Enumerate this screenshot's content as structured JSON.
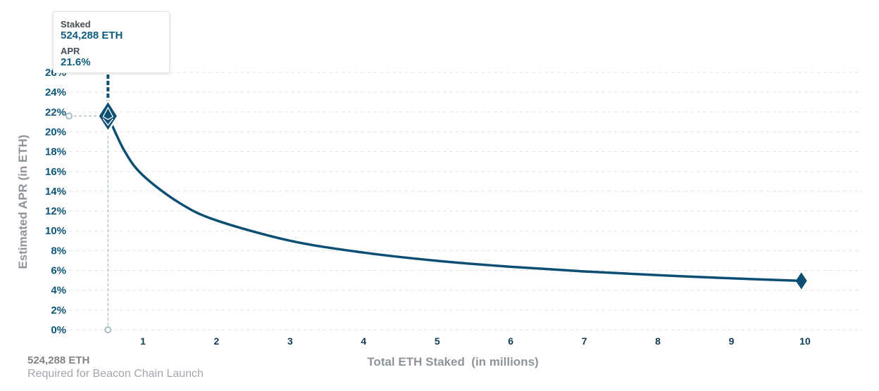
{
  "chart_data": {
    "type": "line",
    "xlabel": "Total ETH Staked  (in millions)",
    "ylabel": "Estimated APR (in ETH)",
    "xlim": [
      0,
      10.5
    ],
    "ylim": [
      0,
      26
    ],
    "x_ticks": [
      "1",
      "2",
      "3",
      "4",
      "5",
      "6",
      "7",
      "8",
      "9",
      "10"
    ],
    "y_ticks": [
      "0%",
      "2%",
      "4%",
      "6%",
      "8%",
      "10%",
      "12%",
      "14%",
      "16%",
      "18%",
      "20%",
      "22%",
      "24%",
      "26%"
    ],
    "grid": "horizontal dashed",
    "series": [
      {
        "x": [
          0.524288,
          0.75,
          1,
          1.5,
          2,
          3,
          4,
          5,
          6,
          7,
          8,
          9,
          9.95
        ],
        "y": [
          21.6,
          18.05,
          15.6,
          12.8,
          11.05,
          9.0,
          7.8,
          6.97,
          6.37,
          5.9,
          5.52,
          5.2,
          4.95
        ]
      }
    ],
    "highlight": {
      "x": 0.524288,
      "y": 21.6
    },
    "end_marker": {
      "x": 9.95,
      "y": 4.95
    }
  },
  "tooltip": {
    "staked_label": "Staked",
    "staked_value": "524,288 ETH",
    "apr_label": "APR",
    "apr_value": "21.6%"
  },
  "footnote": {
    "value": "524,288 ETH",
    "caption": "Required for Beacon Chain Launch"
  },
  "colors": {
    "line": "#0c4f72",
    "tick_y": "#0d5678",
    "tick_x": "#0f3d55",
    "tooltip_value": "#0d5e80",
    "axis_title": "#8f949a",
    "footnote_value": "#7f8489",
    "footnote_caption": "#a2a6ab",
    "grid": "#dde3e8",
    "guide": "#a9bcc8"
  }
}
